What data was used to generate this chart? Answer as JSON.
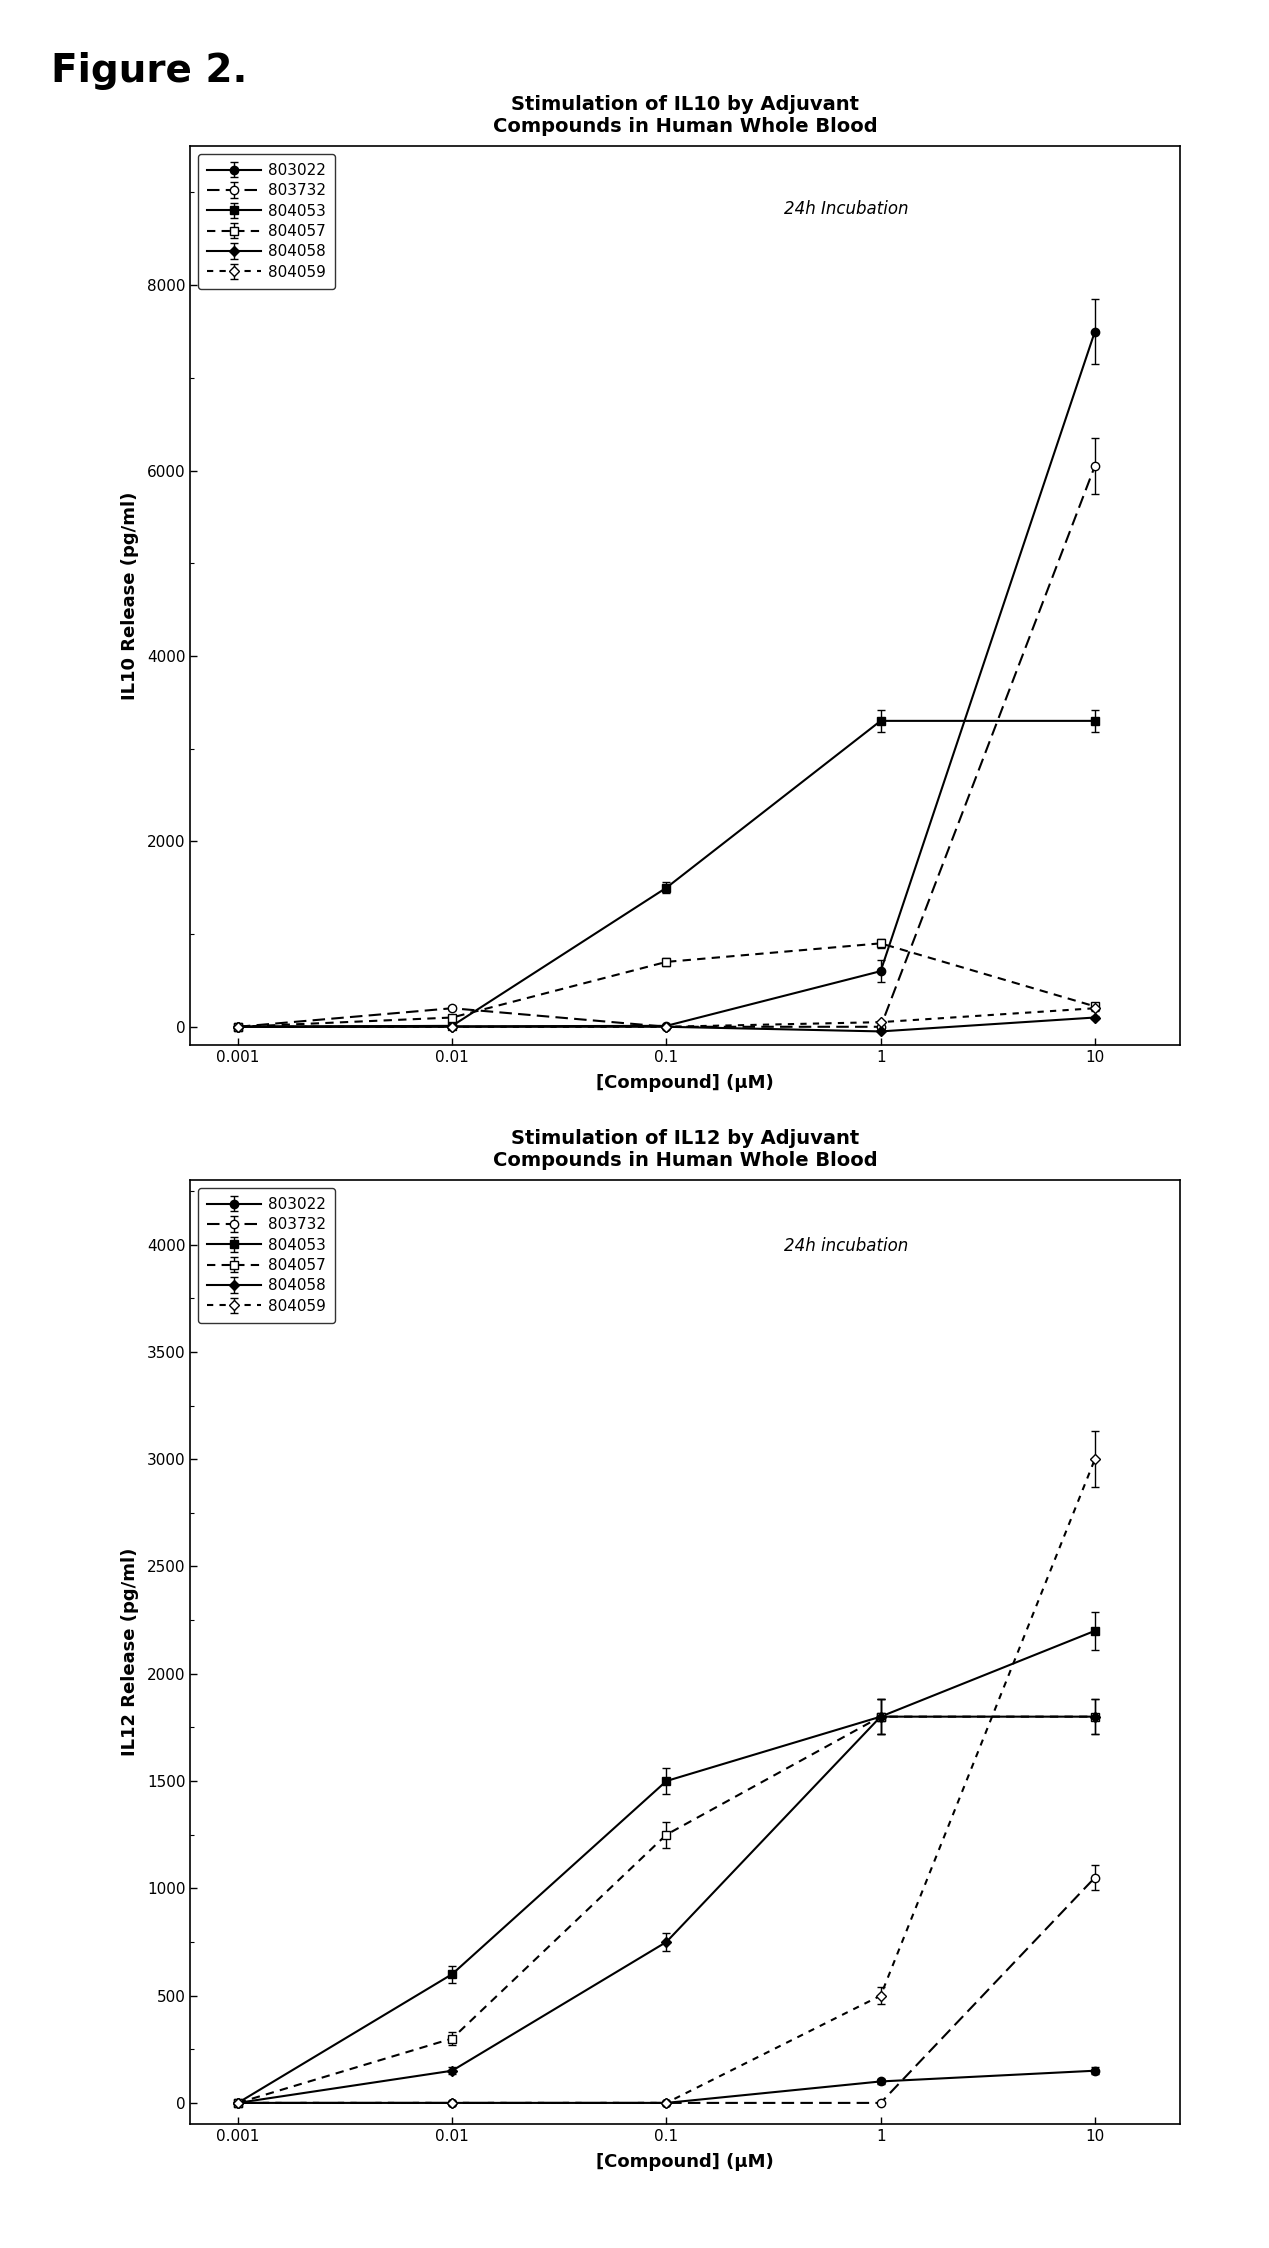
{
  "figure_label": "Figure 2.",
  "plot1": {
    "title": "Stimulation of IL10 by Adjuvant\nCompounds in Human Whole Blood",
    "ylabel": "IL10 Release (pg/ml)",
    "xlabel": "[Compound] (μM)",
    "annotation": "24h Incubation",
    "ylim": [
      -200,
      9500
    ],
    "yticks": [
      0,
      2000,
      4000,
      6000,
      8000
    ],
    "x": [
      0.001,
      0.01,
      0.1,
      1,
      10
    ],
    "series": [
      {
        "label": "803022",
        "y": [
          0,
          5,
          10,
          600,
          7500
        ],
        "yerr": [
          0,
          0,
          0,
          120,
          350
        ],
        "linestyle": "-",
        "marker": "o",
        "markerfacecolor": "black",
        "color": "black",
        "markersize": 6,
        "dashes": []
      },
      {
        "label": "803732",
        "y": [
          0,
          200,
          0,
          0,
          6050
        ],
        "yerr": [
          0,
          20,
          0,
          0,
          300
        ],
        "linestyle": "--",
        "marker": "o",
        "markerfacecolor": "white",
        "color": "black",
        "markersize": 6,
        "dashes": [
          6,
          3
        ]
      },
      {
        "label": "804053",
        "y": [
          0,
          10,
          1500,
          3300,
          3300
        ],
        "yerr": [
          0,
          0,
          60,
          120,
          120
        ],
        "linestyle": "-",
        "marker": "s",
        "markerfacecolor": "black",
        "color": "black",
        "markersize": 6,
        "dashes": []
      },
      {
        "label": "804057",
        "y": [
          0,
          100,
          700,
          900,
          220
        ],
        "yerr": [
          0,
          20,
          40,
          50,
          20
        ],
        "linestyle": "--",
        "marker": "s",
        "markerfacecolor": "white",
        "color": "black",
        "markersize": 6,
        "dashes": [
          4,
          3
        ]
      },
      {
        "label": "804058",
        "y": [
          0,
          0,
          0,
          -50,
          100
        ],
        "yerr": [
          0,
          0,
          0,
          0,
          15
        ],
        "linestyle": "-",
        "marker": "D",
        "markerfacecolor": "black",
        "color": "black",
        "markersize": 5,
        "dashes": []
      },
      {
        "label": "804059",
        "y": [
          0,
          0,
          0,
          50,
          200
        ],
        "yerr": [
          0,
          0,
          0,
          10,
          25
        ],
        "linestyle": "--",
        "marker": "D",
        "markerfacecolor": "white",
        "color": "black",
        "markersize": 5,
        "dashes": [
          3,
          3
        ]
      }
    ]
  },
  "plot2": {
    "title": "Stimulation of IL12 by Adjuvant\nCompounds in Human Whole Blood",
    "ylabel": "IL12 Release (pg/ml)",
    "xlabel": "[Compound] (μM)",
    "annotation": "24h incubation",
    "ylim": [
      -100,
      4300
    ],
    "yticks": [
      0,
      500,
      1000,
      1500,
      2000,
      2500,
      3000,
      3500,
      4000
    ],
    "x": [
      0.001,
      0.01,
      0.1,
      1,
      10
    ],
    "series": [
      {
        "label": "803022",
        "y": [
          0,
          0,
          0,
          100,
          150
        ],
        "yerr": [
          0,
          0,
          0,
          10,
          15
        ],
        "linestyle": "-",
        "marker": "o",
        "markerfacecolor": "black",
        "color": "black",
        "markersize": 6,
        "dashes": []
      },
      {
        "label": "803732",
        "y": [
          0,
          0,
          0,
          0,
          1050
        ],
        "yerr": [
          0,
          0,
          0,
          0,
          60
        ],
        "linestyle": "--",
        "marker": "o",
        "markerfacecolor": "white",
        "color": "black",
        "markersize": 6,
        "dashes": [
          6,
          3
        ]
      },
      {
        "label": "804053",
        "y": [
          0,
          600,
          1500,
          1800,
          2200
        ],
        "yerr": [
          0,
          40,
          60,
          80,
          90
        ],
        "linestyle": "-",
        "marker": "s",
        "markerfacecolor": "black",
        "color": "black",
        "markersize": 6,
        "dashes": []
      },
      {
        "label": "804057",
        "y": [
          0,
          300,
          1250,
          1800,
          1800
        ],
        "yerr": [
          0,
          30,
          60,
          80,
          80
        ],
        "linestyle": "--",
        "marker": "s",
        "markerfacecolor": "white",
        "color": "black",
        "markersize": 6,
        "dashes": [
          4,
          3
        ]
      },
      {
        "label": "804058",
        "y": [
          0,
          150,
          750,
          1800,
          1800
        ],
        "yerr": [
          0,
          15,
          40,
          80,
          80
        ],
        "linestyle": "-",
        "marker": "D",
        "markerfacecolor": "black",
        "color": "black",
        "markersize": 5,
        "dashes": []
      },
      {
        "label": "804059",
        "y": [
          0,
          0,
          0,
          500,
          3000
        ],
        "yerr": [
          0,
          0,
          0,
          40,
          130
        ],
        "linestyle": "--",
        "marker": "D",
        "markerfacecolor": "white",
        "color": "black",
        "markersize": 5,
        "dashes": [
          3,
          3
        ]
      }
    ]
  }
}
